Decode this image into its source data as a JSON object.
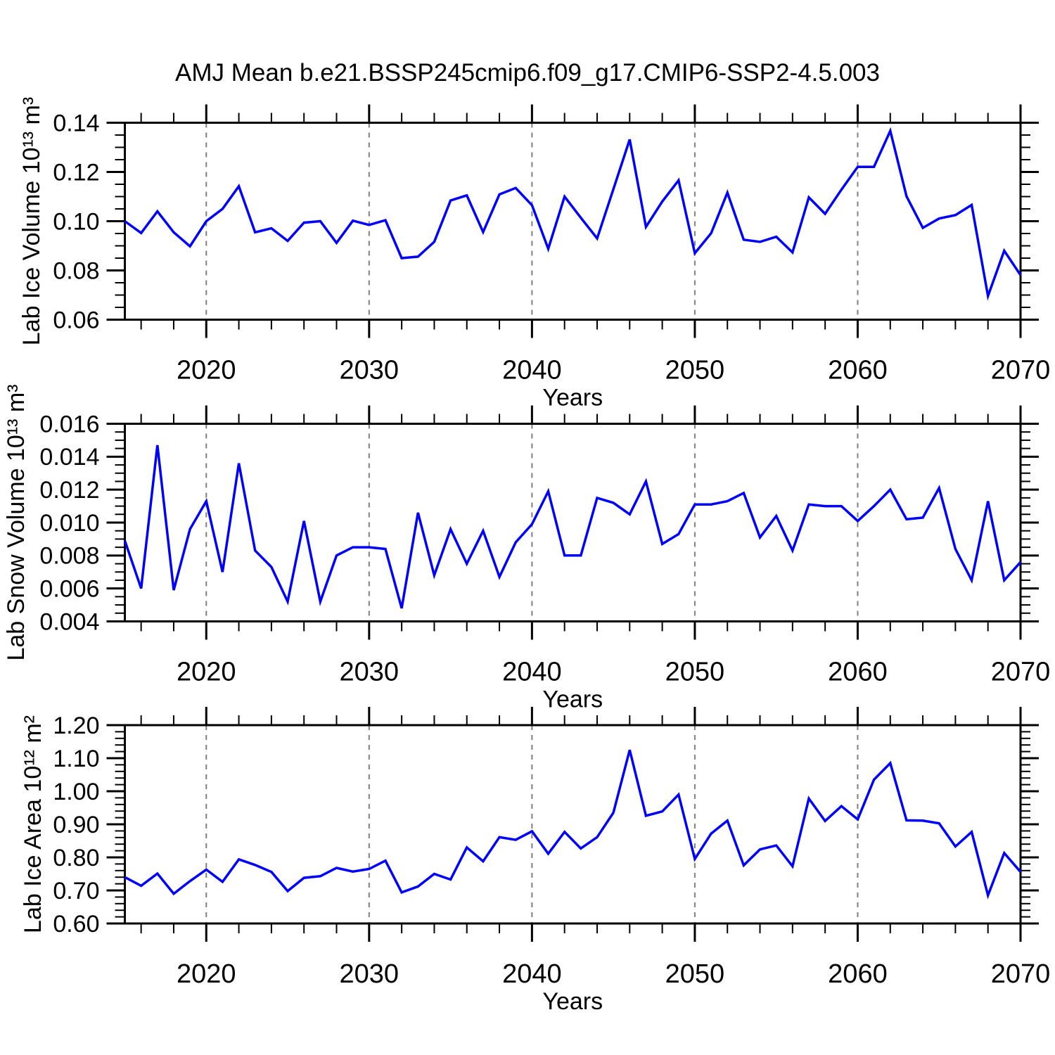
{
  "title": "AMJ Mean b.e21.BSSP245cmip6.f09_g17.CMIP6-SSP2-4.5.003",
  "colors": {
    "line": "#0000ff",
    "grid": "#808080",
    "axis": "#000000",
    "background": "#ffffff",
    "text": "#000000"
  },
  "chart_data": [
    {
      "id": "lab-ice-volume",
      "type": "line",
      "ylabel": "Lab Ice Volume 10¹³ m³",
      "xlabel": "Years",
      "ylim": [
        0.06,
        0.14
      ],
      "yticks": [
        "0.06",
        "0.08",
        "0.10",
        "0.12",
        "0.14"
      ],
      "y_minor_step": 0.005,
      "xlim": [
        2015,
        2070
      ],
      "xticks": [
        2020,
        2030,
        2040,
        2050,
        2060,
        2070
      ],
      "x_minor_step": 2,
      "grid_years": [
        2020,
        2030,
        2040,
        2050,
        2060
      ],
      "legend": "none",
      "grid": "vertical-dashed",
      "x": [
        2015,
        2016,
        2017,
        2018,
        2019,
        2020,
        2021,
        2022,
        2023,
        2024,
        2025,
        2026,
        2027,
        2028,
        2029,
        2030,
        2031,
        2032,
        2033,
        2034,
        2035,
        2036,
        2037,
        2038,
        2039,
        2040,
        2041,
        2042,
        2043,
        2044,
        2045,
        2046,
        2047,
        2048,
        2049,
        2050,
        2051,
        2052,
        2053,
        2054,
        2055,
        2056,
        2057,
        2058,
        2059,
        2060,
        2061,
        2062,
        2063,
        2064,
        2065,
        2066,
        2067,
        2068,
        2069,
        2070
      ],
      "values": [
        0.1,
        0.0952,
        0.104,
        0.0955,
        0.0898,
        0.1,
        0.105,
        0.1142,
        0.0955,
        0.0971,
        0.092,
        0.0994,
        0.1,
        0.0912,
        0.1002,
        0.0985,
        0.1004,
        0.085,
        0.0856,
        0.0916,
        0.1084,
        0.1105,
        0.0956,
        0.1109,
        0.1135,
        0.1065,
        0.0888,
        0.11,
        0.1014,
        0.093,
        0.113,
        0.1332,
        0.0977,
        0.108,
        0.1166,
        0.087,
        0.0951,
        0.1116,
        0.0925,
        0.0916,
        0.0937,
        0.0873,
        0.1097,
        0.103,
        0.1128,
        0.1221,
        0.1221,
        0.1367,
        0.1101,
        0.0973,
        0.1011,
        0.1025,
        0.1066,
        0.0696,
        0.088,
        0.0781
      ]
    },
    {
      "id": "lab-snow-volume",
      "type": "line",
      "ylabel": "Lab Snow Volume 10¹³ m³",
      "xlabel": "Years",
      "ylim": [
        0.004,
        0.016
      ],
      "yticks": [
        "0.004",
        "0.006",
        "0.008",
        "0.010",
        "0.012",
        "0.014",
        "0.016"
      ],
      "y_minor_step": 0.0005,
      "xlim": [
        2015,
        2070
      ],
      "xticks": [
        2020,
        2030,
        2040,
        2050,
        2060,
        2070
      ],
      "x_minor_step": 2,
      "grid_years": [
        2020,
        2030,
        2040,
        2050,
        2060
      ],
      "legend": "none",
      "grid": "vertical-dashed",
      "x": [
        2015,
        2016,
        2017,
        2018,
        2019,
        2020,
        2021,
        2022,
        2023,
        2024,
        2025,
        2026,
        2027,
        2028,
        2029,
        2030,
        2031,
        2032,
        2033,
        2034,
        2035,
        2036,
        2037,
        2038,
        2039,
        2040,
        2041,
        2042,
        2043,
        2044,
        2045,
        2046,
        2047,
        2048,
        2049,
        2050,
        2051,
        2052,
        2053,
        2054,
        2055,
        2056,
        2057,
        2058,
        2059,
        2060,
        2061,
        2062,
        2063,
        2064,
        2065,
        2066,
        2067,
        2068,
        2069,
        2070
      ],
      "values": [
        0.0089,
        0.006,
        0.0147,
        0.0059,
        0.0096,
        0.0113,
        0.007,
        0.0136,
        0.0083,
        0.0073,
        0.0052,
        0.0101,
        0.0052,
        0.008,
        0.0085,
        0.0085,
        0.0084,
        0.0048,
        0.0106,
        0.0068,
        0.0096,
        0.0075,
        0.0095,
        0.0067,
        0.0088,
        0.0099,
        0.0119,
        0.008,
        0.008,
        0.0115,
        0.0112,
        0.0105,
        0.0125,
        0.0087,
        0.0093,
        0.0111,
        0.0111,
        0.0113,
        0.0118,
        0.0091,
        0.0104,
        0.0083,
        0.0111,
        0.011,
        0.011,
        0.0101,
        0.011,
        0.012,
        0.0102,
        0.0103,
        0.0121,
        0.0084,
        0.0065,
        0.0113,
        0.0065,
        0.0076
      ]
    },
    {
      "id": "lab-ice-area",
      "type": "line",
      "ylabel": "Lab Ice Area 10¹² m²",
      "xlabel": "Years",
      "ylim": [
        0.6,
        1.2
      ],
      "yticks": [
        "0.60",
        "0.70",
        "0.80",
        "0.90",
        "1.00",
        "1.10",
        "1.20"
      ],
      "y_minor_step": 0.02,
      "xlim": [
        2015,
        2070
      ],
      "xticks": [
        2020,
        2030,
        2040,
        2050,
        2060,
        2070
      ],
      "x_minor_step": 2,
      "grid_years": [
        2020,
        2030,
        2040,
        2050,
        2060
      ],
      "legend": "none",
      "grid": "vertical-dashed",
      "x": [
        2015,
        2016,
        2017,
        2018,
        2019,
        2020,
        2021,
        2022,
        2023,
        2024,
        2025,
        2026,
        2027,
        2028,
        2029,
        2030,
        2031,
        2032,
        2033,
        2034,
        2035,
        2036,
        2037,
        2038,
        2039,
        2040,
        2041,
        2042,
        2043,
        2044,
        2045,
        2046,
        2047,
        2048,
        2049,
        2050,
        2051,
        2052,
        2053,
        2054,
        2055,
        2056,
        2057,
        2058,
        2059,
        2060,
        2061,
        2062,
        2063,
        2064,
        2065,
        2066,
        2067,
        2068,
        2069,
        2070
      ],
      "values": [
        0.74,
        0.714,
        0.751,
        0.69,
        0.728,
        0.763,
        0.726,
        0.794,
        0.777,
        0.756,
        0.698,
        0.738,
        0.743,
        0.768,
        0.757,
        0.765,
        0.79,
        0.694,
        0.712,
        0.75,
        0.733,
        0.83,
        0.788,
        0.861,
        0.853,
        0.879,
        0.811,
        0.877,
        0.827,
        0.861,
        0.935,
        1.125,
        0.926,
        0.939,
        0.99,
        0.795,
        0.872,
        0.911,
        0.776,
        0.824,
        0.836,
        0.773,
        0.978,
        0.91,
        0.955,
        0.915,
        1.035,
        1.085,
        0.912,
        0.911,
        0.903,
        0.833,
        0.877,
        0.685,
        0.813,
        0.756
      ]
    }
  ]
}
